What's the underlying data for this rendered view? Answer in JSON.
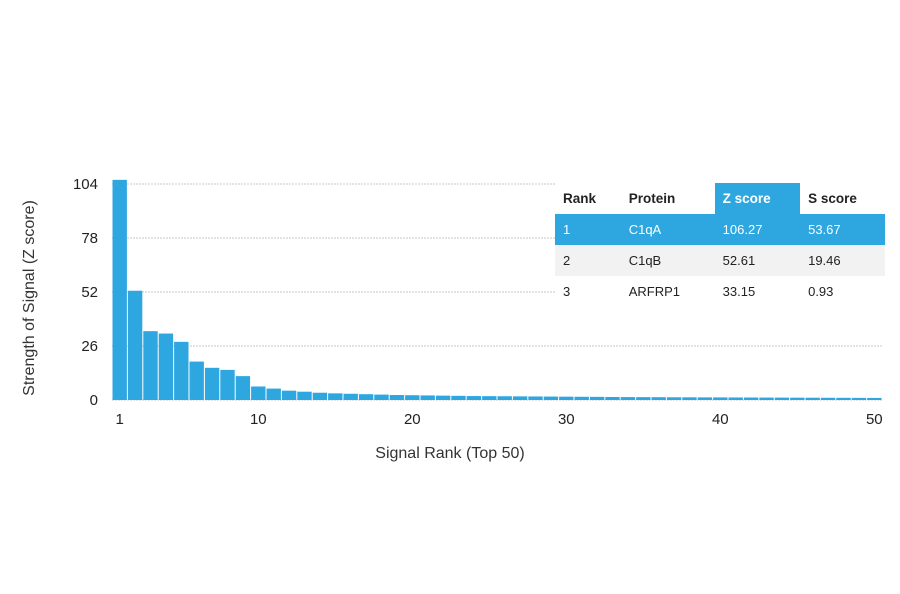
{
  "chart_data": {
    "type": "bar",
    "xlabel": "Signal Rank (Top 50)",
    "ylabel": "Strength of Signal (Z score)",
    "ylim": [
      0,
      104
    ],
    "yticks": [
      0,
      26,
      52,
      78,
      104
    ],
    "xticks": [
      1,
      10,
      20,
      30,
      40,
      50
    ],
    "grid": true,
    "color": "#2ea7e0",
    "categories": [
      1,
      2,
      3,
      4,
      5,
      6,
      7,
      8,
      9,
      10,
      11,
      12,
      13,
      14,
      15,
      16,
      17,
      18,
      19,
      20,
      21,
      22,
      23,
      24,
      25,
      26,
      27,
      28,
      29,
      30,
      31,
      32,
      33,
      34,
      35,
      36,
      37,
      38,
      39,
      40,
      41,
      42,
      43,
      44,
      45,
      46,
      47,
      48,
      49,
      50
    ],
    "values": [
      106.27,
      52.61,
      33.15,
      32,
      28,
      18.5,
      15.5,
      14.5,
      11.5,
      6.5,
      5.5,
      4.5,
      4,
      3.5,
      3.2,
      3,
      2.8,
      2.6,
      2.4,
      2.3,
      2.2,
      2.1,
      2,
      1.9,
      1.85,
      1.8,
      1.75,
      1.7,
      1.65,
      1.6,
      1.55,
      1.5,
      1.45,
      1.4,
      1.38,
      1.35,
      1.32,
      1.3,
      1.27,
      1.25,
      1.22,
      1.2,
      1.17,
      1.15,
      1.12,
      1.1,
      1.07,
      1.05,
      1.02,
      1.0
    ]
  },
  "table": {
    "headers": {
      "rank": "Rank",
      "protein": "Protein",
      "z": "Z score",
      "s": "S score"
    },
    "rows": [
      {
        "rank": "1",
        "protein": "C1qA",
        "z": "106.27",
        "s": "53.67"
      },
      {
        "rank": "2",
        "protein": "C1qB",
        "z": "52.61",
        "s": "19.46"
      },
      {
        "rank": "3",
        "protein": "ARFRP1",
        "z": "33.15",
        "s": "0.93"
      }
    ]
  }
}
